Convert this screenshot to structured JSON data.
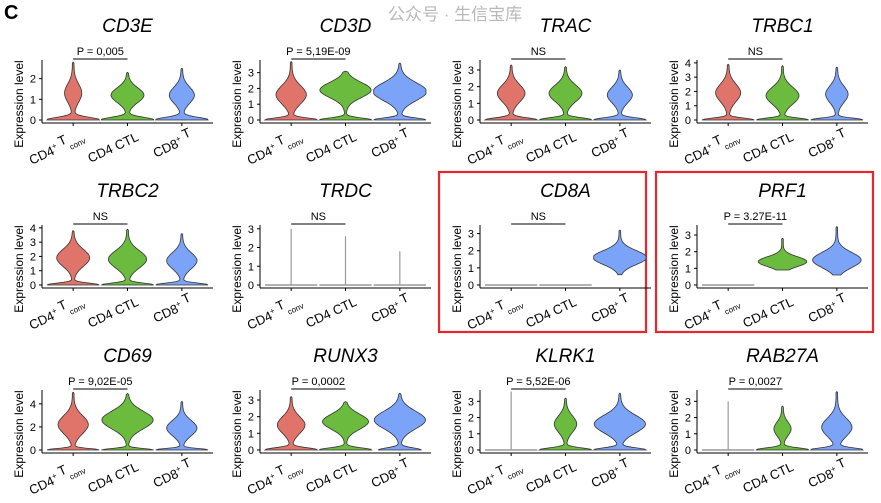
{
  "panel_letter": "C",
  "watermark": "公众号 · 生信宝库",
  "colors": {
    "CD4+ Tconv": "#e0746a",
    "CD4 CTL": "#6abb3e",
    "CD8+ T": "#7ba3f7",
    "flat": "#9a9a9a",
    "highlight": "#e8262c"
  },
  "chart_data": [
    {
      "type": "violin",
      "title": "CD3E",
      "p": "P = 0,005",
      "ylabel": "Expression level",
      "yticks": [
        0,
        1,
        2
      ],
      "ylim": [
        0,
        2.9
      ],
      "highlight": false,
      "groups": [
        {
          "name": "CD4+ Tconv",
          "max": 2.8,
          "mode": 1.3,
          "bulb": 0.3,
          "zero": 1
        },
        {
          "name": "CD4 CTL",
          "max": 2.3,
          "mode": 1.2,
          "bulb": 0.6,
          "zero": 1
        },
        {
          "name": "CD8+ T",
          "max": 2.5,
          "mode": 1.2,
          "bulb": 0.45,
          "zero": 1
        }
      ]
    },
    {
      "type": "violin",
      "title": "CD3D",
      "p": "P = 5,19E-09",
      "ylabel": "Expression level",
      "yticks": [
        0,
        1,
        2,
        3
      ],
      "ylim": [
        0,
        3.8
      ],
      "highlight": false,
      "groups": [
        {
          "name": "CD4+ Tconv",
          "max": 3.7,
          "mode": 1.6,
          "bulb": 0.55,
          "zero": 1
        },
        {
          "name": "CD4 CTL",
          "max": 3.1,
          "mode": 1.9,
          "bulb": 0.95,
          "zero": 1
        },
        {
          "name": "CD8+ T",
          "max": 3.6,
          "mode": 1.8,
          "bulb": 1,
          "zero": 1
        }
      ]
    },
    {
      "type": "violin",
      "title": "TRAC",
      "p": "NS",
      "ylabel": "Expression level",
      "yticks": [
        0,
        1,
        2,
        3
      ],
      "ylim": [
        0,
        3.6
      ],
      "highlight": false,
      "groups": [
        {
          "name": "CD4+ Tconv",
          "max": 3.3,
          "mode": 1.6,
          "bulb": 0.5,
          "zero": 1
        },
        {
          "name": "CD4 CTL",
          "max": 3.2,
          "mode": 1.6,
          "bulb": 0.6,
          "zero": 1
        },
        {
          "name": "CD8+ T",
          "max": 3.0,
          "mode": 1.5,
          "bulb": 0.45,
          "zero": 1
        }
      ]
    },
    {
      "type": "violin",
      "title": "TRBC1",
      "p": "NS",
      "ylabel": "Expression level",
      "yticks": [
        0,
        1,
        2,
        3,
        4
      ],
      "ylim": [
        0,
        4.2
      ],
      "highlight": false,
      "groups": [
        {
          "name": "CD4+ Tconv",
          "max": 3.9,
          "mode": 1.9,
          "bulb": 0.45,
          "zero": 1
        },
        {
          "name": "CD4 CTL",
          "max": 3.8,
          "mode": 1.7,
          "bulb": 0.6,
          "zero": 1
        },
        {
          "name": "CD8+ T",
          "max": 3.7,
          "mode": 1.8,
          "bulb": 0.4,
          "zero": 1
        }
      ]
    },
    {
      "type": "violin",
      "title": "TRBC2",
      "p": "NS",
      "ylabel": "Expression level",
      "yticks": [
        0,
        1,
        2,
        3,
        4
      ],
      "ylim": [
        0,
        4.2
      ],
      "highlight": false,
      "groups": [
        {
          "name": "CD4+ Tconv",
          "max": 3.8,
          "mode": 1.9,
          "bulb": 0.6,
          "zero": 1
        },
        {
          "name": "CD4 CTL",
          "max": 3.9,
          "mode": 1.8,
          "bulb": 0.7,
          "zero": 1
        },
        {
          "name": "CD8+ T",
          "max": 3.6,
          "mode": 1.7,
          "bulb": 0.55,
          "zero": 1
        }
      ]
    },
    {
      "type": "violin",
      "title": "TRDC",
      "p": "NS",
      "ylabel": "Expression level",
      "yticks": [
        0,
        1,
        2,
        3
      ],
      "ylim": [
        0,
        3.2
      ],
      "highlight": false,
      "groups": [
        {
          "name": "CD4+ Tconv",
          "max": 3.0,
          "mode": 0,
          "bulb": 0,
          "zero": 0,
          "flat": true
        },
        {
          "name": "CD4 CTL",
          "max": 2.6,
          "mode": 0,
          "bulb": 0,
          "zero": 0,
          "flat": true
        },
        {
          "name": "CD8+ T",
          "max": 1.8,
          "mode": 0,
          "bulb": 0,
          "zero": 0,
          "flat": true
        }
      ]
    },
    {
      "type": "violin",
      "title": "CD8A",
      "p": "NS",
      "ylabel": "Expression level",
      "yticks": [
        0,
        1,
        2,
        3
      ],
      "ylim": [
        0,
        3.5
      ],
      "highlight": true,
      "groups": [
        {
          "name": "CD4+ Tconv",
          "max": 0,
          "mode": 0,
          "bulb": 0,
          "zero": 0,
          "flat": true
        },
        {
          "name": "CD4 CTL",
          "max": 0,
          "mode": 0,
          "bulb": 0,
          "zero": 0,
          "flat": true
        },
        {
          "name": "CD8+ T",
          "max": 3.2,
          "mode": 1.6,
          "bulb": 1,
          "zero": 0,
          "min": 0.6
        }
      ]
    },
    {
      "type": "violin",
      "title": "PRF1",
      "p": "P = 3.27E-11",
      "ylabel": "Expression level",
      "yticks": [
        0,
        1,
        2,
        3
      ],
      "ylim": [
        0,
        3.6
      ],
      "highlight": true,
      "groups": [
        {
          "name": "CD4+ Tconv",
          "max": 0,
          "mode": 0,
          "bulb": 0,
          "zero": 0,
          "flat": true
        },
        {
          "name": "CD4 CTL",
          "max": 2.8,
          "mode": 1.4,
          "bulb": 0.9,
          "zero": 0,
          "min": 0.9
        },
        {
          "name": "CD8+ T",
          "max": 3.5,
          "mode": 1.5,
          "bulb": 0.9,
          "zero": 0,
          "min": 0.6
        }
      ]
    },
    {
      "type": "violin",
      "title": "CD69",
      "p": "P = 9,02E-05",
      "ylabel": "Expression level",
      "yticks": [
        0,
        2,
        4
      ],
      "ylim": [
        0,
        5.2
      ],
      "highlight": false,
      "groups": [
        {
          "name": "CD4+ Tconv",
          "max": 5.0,
          "mode": 2.2,
          "bulb": 0.55,
          "zero": 1
        },
        {
          "name": "CD4 CTL",
          "max": 4.9,
          "mode": 2.6,
          "bulb": 0.95,
          "zero": 1
        },
        {
          "name": "CD8+ T",
          "max": 4.2,
          "mode": 1.9,
          "bulb": 0.55,
          "zero": 1
        }
      ]
    },
    {
      "type": "violin",
      "title": "RUNX3",
      "p": "P = 0,0002",
      "ylabel": "Expression level",
      "yticks": [
        0,
        1,
        2,
        3
      ],
      "ylim": [
        0,
        3.6
      ],
      "highlight": false,
      "groups": [
        {
          "name": "CD4+ Tconv",
          "max": 3.2,
          "mode": 1.5,
          "bulb": 0.5,
          "zero": 1
        },
        {
          "name": "CD4 CTL",
          "max": 2.9,
          "mode": 1.7,
          "bulb": 0.85,
          "zero": 1
        },
        {
          "name": "CD8+ T",
          "max": 3.4,
          "mode": 1.8,
          "bulb": 0.95,
          "zero": 0.8
        }
      ]
    },
    {
      "type": "violin",
      "title": "KLRK1",
      "p": "P = 5,52E-06",
      "ylabel": "Expression level",
      "yticks": [
        0,
        1,
        2,
        3
      ],
      "ylim": [
        0,
        3.7
      ],
      "highlight": false,
      "groups": [
        {
          "name": "CD4+ Tconv",
          "max": 3.6,
          "mode": 0,
          "bulb": 0,
          "zero": 0,
          "flat": true
        },
        {
          "name": "CD4 CTL",
          "max": 3.2,
          "mode": 1.6,
          "bulb": 0.4,
          "zero": 1
        },
        {
          "name": "CD8+ T",
          "max": 3.5,
          "mode": 1.6,
          "bulb": 0.95,
          "zero": 1
        }
      ]
    },
    {
      "type": "violin",
      "title": "RAB27A",
      "p": "P = 0,0027",
      "ylabel": "Expression level",
      "yticks": [
        0,
        1,
        2,
        3
      ],
      "ylim": [
        0,
        3.7
      ],
      "highlight": false,
      "groups": [
        {
          "name": "CD4+ Tconv",
          "max": 3.0,
          "mode": 0,
          "bulb": 0,
          "zero": 0,
          "flat": true
        },
        {
          "name": "CD4 CTL",
          "max": 2.7,
          "mode": 1.3,
          "bulb": 0.3,
          "zero": 1
        },
        {
          "name": "CD8+ T",
          "max": 3.6,
          "mode": 1.4,
          "bulb": 0.55,
          "zero": 1
        }
      ]
    }
  ]
}
